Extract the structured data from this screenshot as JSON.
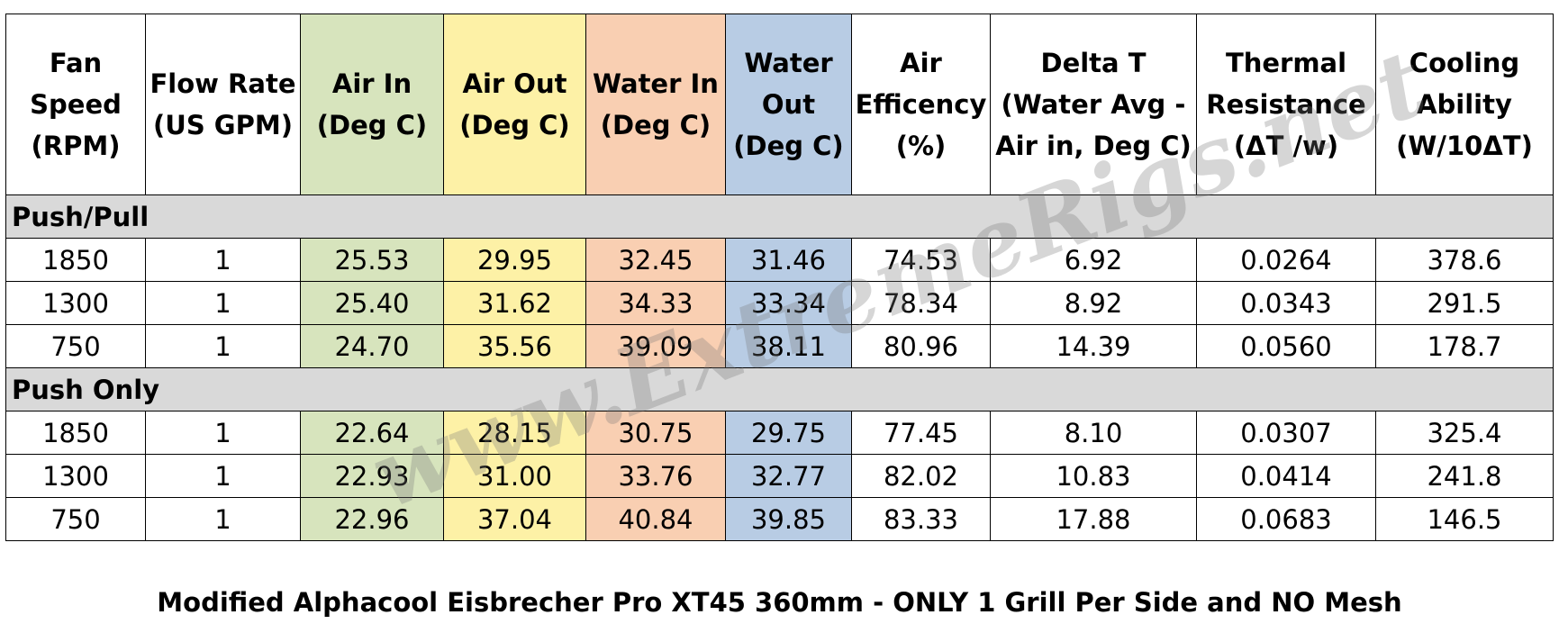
{
  "chart_data": {
    "type": "table",
    "columns": [
      "Fan Speed (RPM)",
      "Flow Rate (US GPM)",
      "Air In (Deg C)",
      "Air Out (Deg C)",
      "Water In (Deg C)",
      "Water Out (Deg C)",
      "Air Efficency (%)",
      "Delta T (Water Avg - Air in, Deg C)",
      "Thermal Resistance (ΔT /w)",
      "Cooling Ability (W/10ΔT)"
    ],
    "header_lines": [
      [
        "Fan",
        "Speed",
        "(RPM)"
      ],
      [
        "Flow Rate",
        "(US GPM)"
      ],
      [
        "Air In",
        "(Deg C)"
      ],
      [
        "Air Out",
        "(Deg C)"
      ],
      [
        "Water In",
        "(Deg C)"
      ],
      [
        "Water",
        "Out",
        "(Deg C)"
      ],
      [
        "Air",
        "Efficency",
        "(%)"
      ],
      [
        "Delta T",
        "(Water Avg -",
        "Air in, Deg C)"
      ],
      [
        "Thermal",
        "Resistance",
        "(ΔT /w)"
      ],
      [
        "Cooling",
        "Ability",
        "(W/10ΔT)"
      ]
    ],
    "column_colors": [
      "",
      "",
      "#d7e4bd",
      "#fdf1a6",
      "#f9cfb2",
      "#b8cce4",
      "",
      "",
      "",
      ""
    ],
    "groups": [
      {
        "name": "Push/Pull",
        "rows": [
          [
            "1850",
            "1",
            "25.53",
            "29.95",
            "32.45",
            "31.46",
            "74.53",
            "6.92",
            "0.0264",
            "378.6"
          ],
          [
            "1300",
            "1",
            "25.40",
            "31.62",
            "34.33",
            "33.34",
            "78.34",
            "8.92",
            "0.0343",
            "291.5"
          ],
          [
            "750",
            "1",
            "24.70",
            "35.56",
            "39.09",
            "38.11",
            "80.96",
            "14.39",
            "0.0560",
            "178.7"
          ]
        ]
      },
      {
        "name": "Push Only",
        "rows": [
          [
            "1850",
            "1",
            "22.64",
            "28.15",
            "30.75",
            "29.75",
            "77.45",
            "8.10",
            "0.0307",
            "325.4"
          ],
          [
            "1300",
            "1",
            "22.93",
            "31.00",
            "33.76",
            "32.77",
            "82.02",
            "10.83",
            "0.0414",
            "241.8"
          ],
          [
            "750",
            "1",
            "22.96",
            "37.04",
            "40.84",
            "39.85",
            "83.33",
            "17.88",
            "0.0683",
            "146.5"
          ]
        ]
      }
    ],
    "caption": "Modified Alphacool Eisbrecher Pro XT45 360mm - ONLY 1 Grill Per Side and NO Mesh",
    "watermark": "www.ExtremeRigs.net"
  }
}
